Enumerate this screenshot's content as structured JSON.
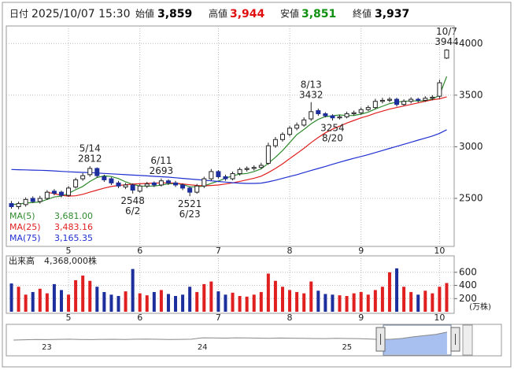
{
  "header": {
    "date_label": "日付",
    "date": "2025/10/07 15:30",
    "fields": [
      {
        "label": "始値",
        "value": "3,859",
        "color": "#000000"
      },
      {
        "label": "高値",
        "value": "3,944",
        "color": "#e01010"
      },
      {
        "label": "安値",
        "value": "3,851",
        "color": "#109010"
      },
      {
        "label": "終値",
        "value": "3,937",
        "color": "#000000"
      }
    ]
  },
  "chart_data": [
    {
      "type": "candlestick",
      "categories": [
        null,
        null,
        null,
        null,
        null,
        null,
        null,
        null,
        "5",
        null,
        null,
        null,
        null,
        null,
        null,
        null,
        null,
        null,
        "6",
        null,
        null,
        null,
        null,
        null,
        null,
        null,
        null,
        null,
        null,
        "7",
        null,
        null,
        null,
        null,
        null,
        null,
        null,
        null,
        null,
        "8",
        null,
        null,
        null,
        null,
        null,
        null,
        null,
        null,
        null,
        "9",
        null,
        null,
        null,
        null,
        null,
        null,
        null,
        null,
        null,
        null,
        "10",
        null
      ],
      "open": [
        2450,
        2420,
        2440,
        2500,
        2470,
        2500,
        2570,
        2560,
        2530,
        2610,
        2690,
        2730,
        2790,
        2710,
        2690,
        2650,
        2610,
        2630,
        2570,
        2620,
        2650,
        2630,
        2670,
        2650,
        2630,
        2600,
        2560,
        2620,
        2690,
        2760,
        2710,
        2690,
        2740,
        2780,
        2790,
        2800,
        2840,
        3010,
        3070,
        3120,
        3180,
        3210,
        3270,
        3350,
        3320,
        3300,
        3280,
        3290,
        3320,
        3330,
        3360,
        3380,
        3440,
        3450,
        3460,
        3410,
        3440,
        3460,
        3450,
        3470,
        3490,
        3859
      ],
      "high": [
        2475,
        2470,
        2510,
        2520,
        2525,
        2580,
        2590,
        2575,
        2620,
        2700,
        2745,
        2812,
        2800,
        2730,
        2705,
        2670,
        2650,
        2645,
        2640,
        2660,
        2665,
        2693,
        2685,
        2670,
        2645,
        2615,
        2640,
        2710,
        2785,
        2775,
        2730,
        2760,
        2800,
        2810,
        2820,
        2845,
        3040,
        3095,
        3140,
        3200,
        3235,
        3285,
        3432,
        3370,
        3335,
        3315,
        3310,
        3340,
        3350,
        3380,
        3400,
        3465,
        3475,
        3480,
        3475,
        3460,
        3480,
        3475,
        3490,
        3500,
        3650,
        3944
      ],
      "low": [
        2400,
        2395,
        2420,
        2455,
        2450,
        2485,
        2530,
        2510,
        2515,
        2595,
        2670,
        2710,
        2700,
        2660,
        2630,
        2600,
        2590,
        2548,
        2555,
        2600,
        2610,
        2615,
        2630,
        2610,
        2580,
        2521,
        2545,
        2600,
        2670,
        2690,
        2670,
        2675,
        2720,
        2760,
        2770,
        2785,
        2825,
        2990,
        3050,
        3100,
        3160,
        3195,
        3250,
        3300,
        3285,
        3254,
        3265,
        3275,
        3300,
        3310,
        3345,
        3365,
        3420,
        3430,
        3390,
        3395,
        3420,
        3430,
        3435,
        3450,
        3470,
        3851
      ],
      "close": [
        2420,
        2450,
        2490,
        2470,
        2500,
        2560,
        2550,
        2530,
        2600,
        2680,
        2720,
        2790,
        2720,
        2680,
        2650,
        2620,
        2630,
        2580,
        2620,
        2640,
        2630,
        2670,
        2650,
        2630,
        2600,
        2560,
        2620,
        2690,
        2760,
        2710,
        2690,
        2740,
        2780,
        2790,
        2800,
        2820,
        3010,
        3070,
        3120,
        3180,
        3210,
        3260,
        3340,
        3320,
        3300,
        3280,
        3290,
        3320,
        3330,
        3360,
        3380,
        3440,
        3450,
        3460,
        3410,
        3440,
        3460,
        3450,
        3470,
        3480,
        3620,
        3937
      ],
      "ylim": [
        2035,
        4170
      ],
      "yticks": [
        2500,
        3000,
        3500,
        4000
      ],
      "grid": true,
      "up_color": "#ffffff",
      "down_color": "#1c2f9c",
      "series": [
        {
          "name": "MA(5)",
          "color": "#2e8b2e",
          "last_label": "3,681.00",
          "values": [
            2440,
            2445,
            2455,
            2460,
            2466,
            2490,
            2514,
            2522,
            2548,
            2584,
            2616,
            2664,
            2702,
            2718,
            2712,
            2692,
            2660,
            2636,
            2620,
            2618,
            2620,
            2628,
            2642,
            2644,
            2636,
            2612,
            2612,
            2620,
            2646,
            2668,
            2696,
            2718,
            2736,
            2742,
            2760,
            2786,
            2840,
            2898,
            2964,
            3040,
            3118,
            3168,
            3222,
            3266,
            3292,
            3300,
            3308,
            3302,
            3304,
            3316,
            3336,
            3366,
            3392,
            3418,
            3432,
            3440,
            3444,
            3444,
            3446,
            3462,
            3500,
            3681
          ]
        },
        {
          "name": "MA(25)",
          "color": "#e02020",
          "last_label": "3,483.16",
          "values": [
            null,
            null,
            null,
            null,
            null,
            2560,
            2545,
            2530,
            2522,
            2525,
            2540,
            2560,
            2580,
            2600,
            2615,
            2625,
            2632,
            2638,
            2642,
            2645,
            2648,
            2650,
            2650,
            2648,
            2640,
            2632,
            2625,
            2622,
            2625,
            2630,
            2640,
            2650,
            2665,
            2680,
            2695,
            2715,
            2750,
            2790,
            2835,
            2885,
            2935,
            2985,
            3040,
            3090,
            3135,
            3170,
            3200,
            3230,
            3255,
            3280,
            3300,
            3325,
            3345,
            3365,
            3380,
            3395,
            3410,
            3425,
            3440,
            3455,
            3465,
            3483.16
          ]
        },
        {
          "name": "MA(75)",
          "color": "#2030d0",
          "last_label": "3,165.35",
          "values": [
            2780,
            2778,
            2776,
            2774,
            2772,
            2770,
            2766,
            2762,
            2758,
            2755,
            2752,
            2750,
            2746,
            2742,
            2738,
            2734,
            2730,
            2726,
            2722,
            2718,
            2714,
            2710,
            2706,
            2700,
            2694,
            2688,
            2682,
            2676,
            2670,
            2664,
            2658,
            2652,
            2648,
            2645,
            2645,
            2648,
            2660,
            2676,
            2694,
            2712,
            2730,
            2750,
            2770,
            2790,
            2810,
            2830,
            2850,
            2870,
            2888,
            2906,
            2924,
            2944,
            2964,
            2984,
            3004,
            3024,
            3044,
            3064,
            3084,
            3104,
            3130,
            3165.35
          ]
        }
      ],
      "annotations": [
        {
          "date": "5/14",
          "value": 2812,
          "at": "high"
        },
        {
          "date": "6/2",
          "value": 2548,
          "at": "low"
        },
        {
          "date": "6/11",
          "value": 2693,
          "at": "high"
        },
        {
          "date": "6/23",
          "value": 2521,
          "at": "low"
        },
        {
          "date": "8/13",
          "value": 3432,
          "at": "high"
        },
        {
          "date": "8/20",
          "value": 3254,
          "at": "low"
        },
        {
          "date": "10/7",
          "value": 3944,
          "at": "high"
        }
      ]
    },
    {
      "type": "bar",
      "title": "出来高",
      "last_label": "4,368,000株",
      "unit": "(万株)",
      "values": [
        430,
        380,
        260,
        300,
        350,
        280,
        420,
        330,
        260,
        480,
        550,
        470,
        380,
        300,
        260,
        240,
        310,
        650,
        280,
        250,
        300,
        330,
        270,
        240,
        260,
        380,
        300,
        420,
        460,
        310,
        260,
        290,
        240,
        230,
        260,
        300,
        580,
        470,
        380,
        330,
        300,
        280,
        460,
        320,
        270,
        260,
        250,
        240,
        280,
        300,
        260,
        330,
        380,
        600,
        660,
        380,
        300,
        260,
        320,
        280,
        380,
        436.8
      ],
      "ylim": [
        0,
        850
      ],
      "yticks": [
        200,
        400,
        600
      ],
      "grid": true,
      "up_color": "#e02020",
      "down_color": "#1c2f9c"
    },
    {
      "type": "area",
      "categories": [
        null,
        null,
        null,
        "23",
        null,
        null,
        null,
        null,
        null,
        null,
        null,
        null,
        null,
        null,
        null,
        null,
        null,
        "24",
        null,
        null,
        null,
        null,
        null,
        null,
        null,
        null,
        null,
        null,
        null,
        null,
        "25",
        null,
        null,
        null,
        null,
        null,
        null,
        null,
        null,
        null
      ],
      "values": [
        2500,
        2550,
        2600,
        2580,
        2620,
        2650,
        2600,
        2580,
        2620,
        2640,
        2600,
        2650,
        2680,
        2640,
        2600,
        2620,
        2650,
        2900,
        2880,
        2850,
        2900,
        2870,
        2850,
        2820,
        2860,
        2830,
        2800,
        2780,
        2760,
        2800,
        2780,
        2760,
        2700,
        2600,
        2650,
        2800,
        3100,
        3300,
        3500,
        3900
      ],
      "ylim": [
        0,
        5000
      ],
      "color": "#888888",
      "window_color": "#a8c0f0"
    }
  ]
}
